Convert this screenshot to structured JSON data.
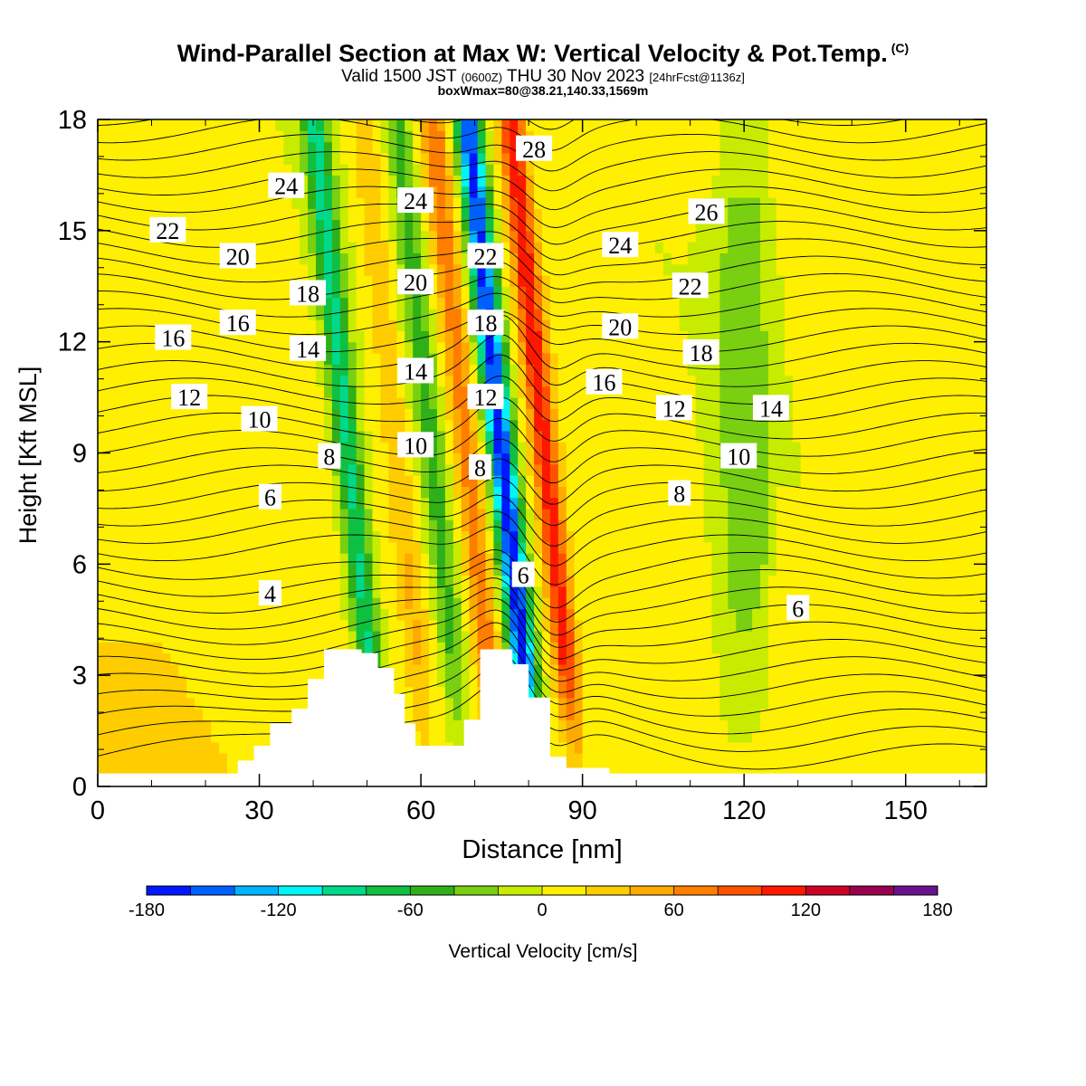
{
  "header": {
    "title": "Wind-Parallel Section at Max W: Vertical Velocity & Pot.Temp.",
    "copyright": "(C)",
    "valid_a": "Valid 1500 JST",
    "valid_z": "(0600Z)",
    "valid_b": "THU 30 Nov 2023",
    "fcst": "[24hrFcst@1136z]",
    "note": "boxWmax=80@38.21,140.33,1569m"
  },
  "chart_data": {
    "type": "heatmap",
    "xlabel": "Distance [nm]",
    "ylabel": "Height [Kft MSL]",
    "xlim": [
      0,
      165
    ],
    "ylim": [
      0,
      18
    ],
    "x_ticks": [
      0,
      30,
      60,
      90,
      120,
      150
    ],
    "y_ticks": [
      0,
      3,
      6,
      9,
      12,
      15,
      18
    ],
    "colorbar": {
      "label": "Vertical Velocity [cm/s]",
      "range": [
        -180,
        180
      ],
      "tick_labels": [
        -180,
        -120,
        -60,
        0,
        60,
        120,
        180
      ],
      "colors": [
        "#0018ff",
        "#0060ff",
        "#00b4ff",
        "#00f6f6",
        "#00d88a",
        "#10c040",
        "#30b018",
        "#78d010",
        "#c8ec00",
        "#ffef00",
        "#ffcc00",
        "#ffaa00",
        "#ff7e00",
        "#ff5000",
        "#ff1800",
        "#cc0028",
        "#990050",
        "#6a108c"
      ]
    },
    "velocity_bands": [
      {
        "x": 46.5,
        "w_cm_s": -90
      },
      {
        "x": 55.5,
        "w_cm_s": 35
      },
      {
        "x": 62,
        "w_cm_s": -50
      },
      {
        "x": 68.5,
        "w_cm_s": 70
      },
      {
        "x": 75,
        "w_cm_s": -175
      },
      {
        "x": 83,
        "w_cm_s": 110
      },
      {
        "x": 120,
        "w_cm_s": -40
      }
    ],
    "terrain": [
      [
        26,
        0
      ],
      [
        26,
        0.7
      ],
      [
        29,
        0.7
      ],
      [
        29,
        1.1
      ],
      [
        32,
        1.1
      ],
      [
        32,
        1.7
      ],
      [
        36,
        1.7
      ],
      [
        36,
        2.1
      ],
      [
        39,
        2.1
      ],
      [
        39,
        2.9
      ],
      [
        42,
        2.9
      ],
      [
        42,
        3.7
      ],
      [
        49,
        3.7
      ],
      [
        49,
        3.6
      ],
      [
        52,
        3.6
      ],
      [
        52,
        3.2
      ],
      [
        55,
        3.2
      ],
      [
        55,
        2.5
      ],
      [
        57,
        2.5
      ],
      [
        57,
        1.7
      ],
      [
        59,
        1.7
      ],
      [
        59,
        1.1
      ],
      [
        64,
        1.1
      ],
      [
        64,
        1.1
      ],
      [
        68,
        1.1
      ],
      [
        68,
        1.8
      ],
      [
        71,
        1.8
      ],
      [
        71,
        3.7
      ],
      [
        77,
        3.7
      ],
      [
        77,
        3.3
      ],
      [
        80,
        3.3
      ],
      [
        80,
        2.4
      ],
      [
        84,
        2.4
      ],
      [
        84,
        0.8
      ],
      [
        87,
        0.8
      ],
      [
        87,
        0.5
      ],
      [
        95,
        0.5
      ],
      [
        95,
        0
      ]
    ],
    "isentropes": [
      4,
      6,
      8,
      10,
      12,
      14,
      16,
      18,
      20,
      22,
      24,
      26,
      28
    ],
    "contour_labels": [
      {
        "text": "24",
        "x": 35,
        "y": 16.2
      },
      {
        "text": "22",
        "x": 13,
        "y": 15.0
      },
      {
        "text": "20",
        "x": 26,
        "y": 14.3
      },
      {
        "text": "18",
        "x": 39,
        "y": 13.3
      },
      {
        "text": "16",
        "x": 26,
        "y": 12.5
      },
      {
        "text": "16",
        "x": 14,
        "y": 12.1
      },
      {
        "text": "14",
        "x": 39,
        "y": 11.8
      },
      {
        "text": "12",
        "x": 17,
        "y": 10.5
      },
      {
        "text": "10",
        "x": 30,
        "y": 9.9
      },
      {
        "text": "8",
        "x": 43,
        "y": 8.9
      },
      {
        "text": "6",
        "x": 32,
        "y": 7.8
      },
      {
        "text": "4",
        "x": 32,
        "y": 5.2
      },
      {
        "text": "24",
        "x": 59,
        "y": 15.8
      },
      {
        "text": "20",
        "x": 59,
        "y": 13.6
      },
      {
        "text": "14",
        "x": 59,
        "y": 11.2
      },
      {
        "text": "10",
        "x": 59,
        "y": 9.2
      },
      {
        "text": "28",
        "x": 81,
        "y": 17.2
      },
      {
        "text": "22",
        "x": 72,
        "y": 14.3
      },
      {
        "text": "18",
        "x": 72,
        "y": 12.5
      },
      {
        "text": "12",
        "x": 72,
        "y": 10.5
      },
      {
        "text": "8",
        "x": 71,
        "y": 8.6
      },
      {
        "text": "6",
        "x": 79,
        "y": 5.7
      },
      {
        "text": "24",
        "x": 97,
        "y": 14.6
      },
      {
        "text": "20",
        "x": 97,
        "y": 12.4
      },
      {
        "text": "16",
        "x": 94,
        "y": 10.9
      },
      {
        "text": "26",
        "x": 113,
        "y": 15.5
      },
      {
        "text": "22",
        "x": 110,
        "y": 13.5
      },
      {
        "text": "18",
        "x": 112,
        "y": 11.7
      },
      {
        "text": "12",
        "x": 107,
        "y": 10.2
      },
      {
        "text": "14",
        "x": 125,
        "y": 10.2
      },
      {
        "text": "10",
        "x": 119,
        "y": 8.9
      },
      {
        "text": "8",
        "x": 108,
        "y": 7.9
      },
      {
        "text": "6",
        "x": 130,
        "y": 4.8
      }
    ]
  }
}
